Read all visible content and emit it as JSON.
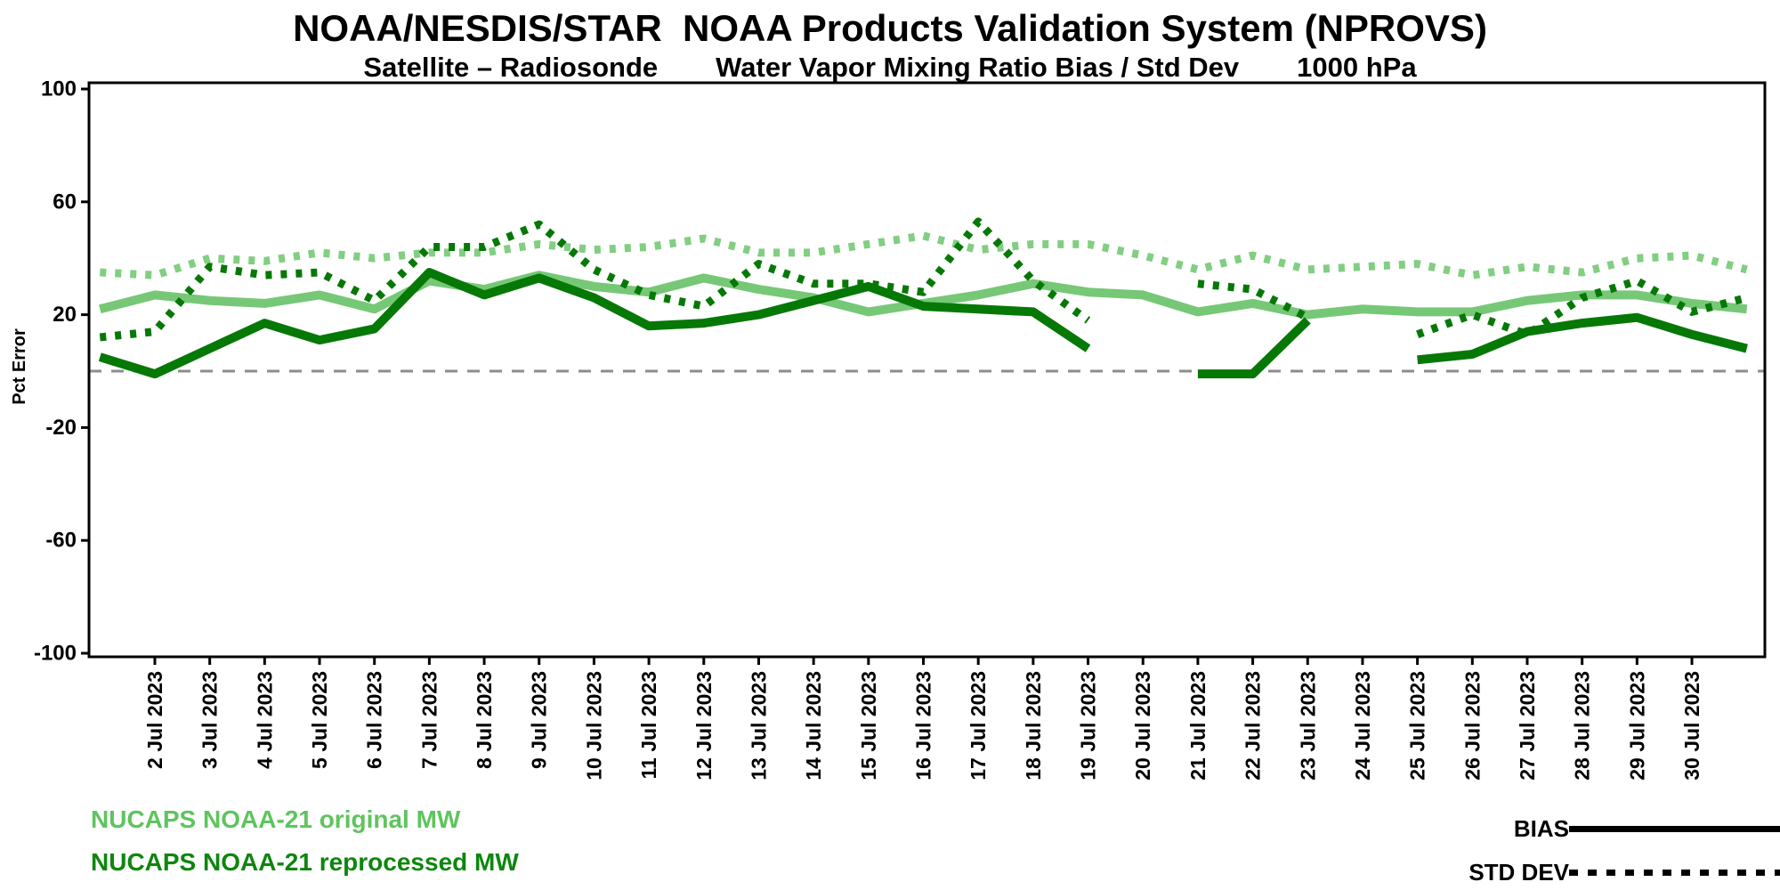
{
  "title": "NOAA/NESDIS/STAR  NOAA Products Validation System (NPROVS)",
  "subtitle": {
    "left": "Satellite – Radiosonde",
    "middle": "Water Vapor Mixing Ratio Bias / Std Dev",
    "right": "1000 hPa"
  },
  "y_axis": {
    "label": "Pct Error",
    "ticks": [
      100,
      60,
      20,
      -20,
      -60,
      -100
    ],
    "min": -100,
    "max": 100
  },
  "x_axis": {
    "tick_labels": [
      "2 Jul 2023",
      "3 Jul 2023",
      "4 Jul 2023",
      "5 Jul 2023",
      "6 Jul 2023",
      "7 Jul 2023",
      "8 Jul 2023",
      "9 Jul 2023",
      "10 Jul 2023",
      "11 Jul 2023",
      "12 Jul 2023",
      "13 Jul 2023",
      "14 Jul 2023",
      "15 Jul 2023",
      "16 Jul 2023",
      "17 Jul 2023",
      "18 Jul 2023",
      "19 Jul 2023",
      "20 Jul 2023",
      "21 Jul 2023",
      "22 Jul 2023",
      "23 Jul 2023",
      "24 Jul 2023",
      "25 Jul 2023",
      "26 Jul 2023",
      "27 Jul 2023",
      "28 Jul 2023",
      "29 Jul 2023",
      "30 Jul 2023"
    ]
  },
  "legend": {
    "series": [
      {
        "label": "NUCAPS NOAA-21 original MW",
        "color": "#74C874"
      },
      {
        "label": "NUCAPS NOAA-21 reprocessed MW",
        "color": "#0E860E"
      }
    ],
    "line_styles": [
      {
        "label": "BIAS",
        "style": "solid"
      },
      {
        "label": "STD DEV",
        "style": "dotted"
      }
    ]
  },
  "chart_data": {
    "type": "line",
    "x": [
      "1 Jul 2023",
      "2 Jul 2023",
      "3 Jul 2023",
      "4 Jul 2023",
      "5 Jul 2023",
      "6 Jul 2023",
      "7 Jul 2023",
      "8 Jul 2023",
      "9 Jul 2023",
      "10 Jul 2023",
      "11 Jul 2023",
      "12 Jul 2023",
      "13 Jul 2023",
      "14 Jul 2023",
      "15 Jul 2023",
      "16 Jul 2023",
      "17 Jul 2023",
      "18 Jul 2023",
      "19 Jul 2023",
      "20 Jul 2023",
      "21 Jul 2023",
      "22 Jul 2023",
      "23 Jul 2023",
      "24 Jul 2023",
      "25 Jul 2023",
      "26 Jul 2023",
      "27 Jul 2023",
      "28 Jul 2023",
      "29 Jul 2023",
      "30 Jul 2023",
      "31 Jul 2023"
    ],
    "ylabel": "Pct Error",
    "ylim": [
      -100,
      100
    ],
    "zero_line": true,
    "zero_line_color": "#8C8C8C",
    "series": [
      {
        "name": "NUCAPS NOAA-21 original MW BIAS",
        "style": "solid",
        "color": "#76C876",
        "values": [
          22,
          27,
          25,
          24,
          27,
          22,
          32,
          29,
          34,
          30,
          28,
          33,
          29,
          26,
          21,
          24,
          27,
          31,
          28,
          27,
          21,
          24,
          20,
          22,
          21,
          21,
          25,
          27,
          27,
          24,
          22
        ]
      },
      {
        "name": "NUCAPS NOAA-21 original MW STD DEV",
        "style": "dotted",
        "color": "#82CE82",
        "values": [
          35,
          34,
          40,
          39,
          42,
          40,
          42,
          42,
          45,
          43,
          44,
          47,
          42,
          42,
          45,
          48,
          43,
          45,
          45,
          41,
          36,
          41,
          36,
          37,
          38,
          34,
          37,
          35,
          40,
          41,
          36
        ]
      },
      {
        "name": "NUCAPS NOAA-21 reprocessed MW BIAS",
        "style": "solid",
        "color": "#067806",
        "values": [
          5,
          -1,
          8,
          17,
          11,
          15,
          35,
          27,
          33,
          26,
          16,
          17,
          20,
          25,
          30,
          23,
          22,
          21,
          8,
          null,
          -1,
          -1,
          18,
          null,
          4,
          6,
          14,
          17,
          19,
          13,
          8
        ]
      },
      {
        "name": "NUCAPS NOAA-21 reprocessed MW STD DEV",
        "style": "dotted",
        "color": "#067806",
        "values": [
          12,
          14,
          37,
          34,
          35,
          25,
          44,
          44,
          52,
          36,
          27,
          23,
          38,
          31,
          31,
          28,
          53,
          32,
          18,
          null,
          31,
          29,
          19,
          null,
          13,
          20,
          13,
          26,
          32,
          21,
          26
        ]
      }
    ]
  }
}
